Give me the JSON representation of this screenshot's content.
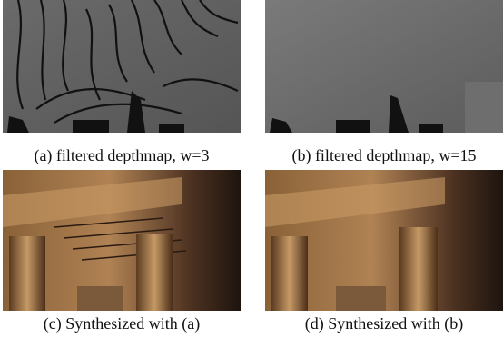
{
  "panels": [
    {
      "caption": "(a) filtered depthmap, w=3"
    },
    {
      "caption": "(b) filtered depthmap, w=15"
    },
    {
      "caption": "(c) Synthesized with (a)"
    },
    {
      "caption": "(d) Synthesized with (b)"
    }
  ]
}
